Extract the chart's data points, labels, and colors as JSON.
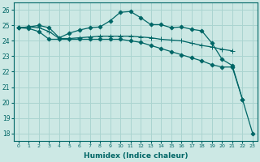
{
  "xlabel": "Humidex (Indice chaleur)",
  "background_color": "#cce8e4",
  "grid_color": "#aad4d0",
  "line_color": "#006666",
  "xlim": [
    -0.5,
    23.5
  ],
  "ylim": [
    17.5,
    26.5
  ],
  "xticks": [
    0,
    1,
    2,
    3,
    4,
    5,
    6,
    7,
    8,
    9,
    10,
    11,
    12,
    13,
    14,
    15,
    16,
    17,
    18,
    19,
    20,
    21,
    22,
    23
  ],
  "yticks": [
    18,
    19,
    20,
    21,
    22,
    23,
    24,
    25,
    26
  ],
  "curves": [
    {
      "x": [
        0,
        1,
        2,
        3,
        4,
        5,
        6,
        7,
        8,
        9,
        10,
        11,
        12,
        13,
        14,
        15,
        16,
        17,
        18,
        19,
        20,
        21,
        22
      ],
      "y": [
        24.85,
        24.9,
        25.0,
        24.85,
        24.2,
        24.5,
        24.7,
        24.85,
        24.9,
        25.3,
        25.85,
        25.9,
        25.5,
        25.05,
        25.05,
        24.85,
        24.9,
        24.75,
        24.65,
        23.85,
        22.8,
        22.4,
        20.2
      ],
      "marker": "D",
      "markersize": 2.5
    },
    {
      "x": [
        0,
        1,
        2,
        3,
        4,
        5,
        6,
        7,
        8,
        9,
        10,
        11,
        12,
        13,
        14,
        15,
        16,
        17,
        18,
        19,
        20,
        21
      ],
      "y": [
        24.85,
        24.9,
        24.85,
        24.6,
        24.15,
        24.15,
        24.2,
        24.25,
        24.3,
        24.3,
        24.3,
        24.3,
        24.25,
        24.2,
        24.1,
        24.05,
        24.0,
        23.85,
        23.7,
        23.6,
        23.45,
        23.35
      ],
      "marker": "+",
      "markersize": 4
    },
    {
      "x": [
        0,
        1,
        2,
        3,
        4,
        5,
        6,
        7,
        8,
        9,
        10,
        11,
        12,
        13,
        14,
        15,
        16,
        17,
        18,
        19,
        20,
        21,
        22,
        23
      ],
      "y": [
        24.85,
        24.8,
        24.6,
        24.1,
        24.1,
        24.1,
        24.1,
        24.1,
        24.1,
        24.1,
        24.1,
        24.0,
        23.9,
        23.7,
        23.5,
        23.3,
        23.1,
        22.9,
        22.7,
        22.45,
        22.3,
        22.3,
        20.2,
        18.0
      ],
      "marker": "D",
      "markersize": 2.5
    }
  ]
}
